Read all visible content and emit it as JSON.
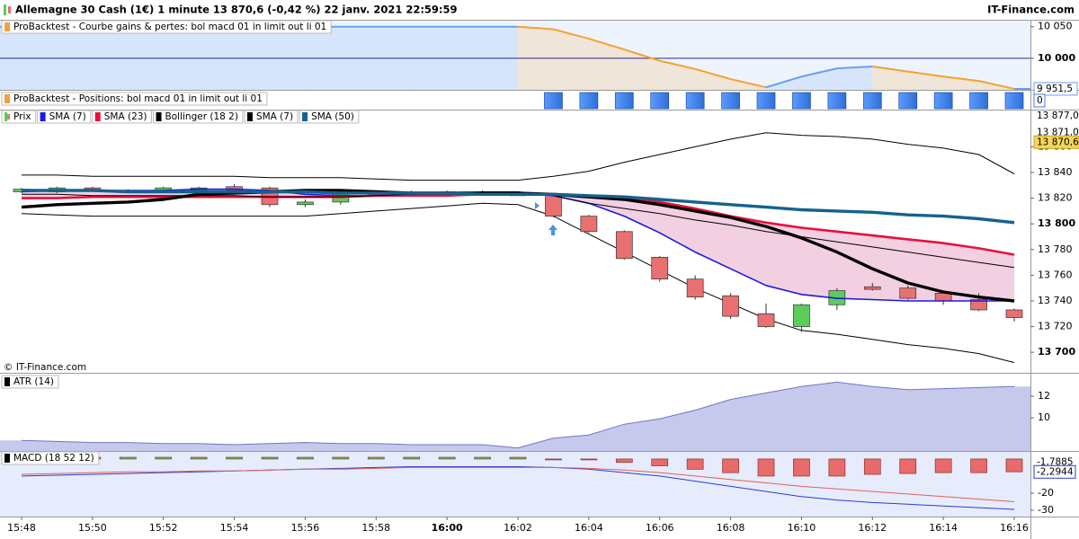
{
  "header": {
    "title": "Allemagne 30 Cash (1€) 1 minute 13 870,6 (-0,42 %) 22 janv. 2021 22:59:59",
    "brand": "IT-Finance.com",
    "copyright": "© IT-Finance.com"
  },
  "chart_data": [
    {
      "type": "line",
      "title": "ProBacktest - Courbe gains & pertes: bol macd 01 in limit out li 01",
      "values": [
        10050,
        10050,
        10050,
        10050,
        10050,
        10050,
        10050,
        10050,
        10050,
        10050,
        10050,
        10050,
        10050,
        10050,
        10050,
        10046,
        10031,
        10014,
        9996,
        9983,
        9967,
        9954,
        9971,
        9984,
        9987,
        9979,
        9971,
        9964,
        9951.5
      ],
      "last_label": "9 951,5",
      "up_color": "#6a9ef0",
      "down_color": "#f5a030",
      "reference_line": 10000,
      "reference_color": "#28288c",
      "ylim": [
        9950,
        10061
      ],
      "yticks": [
        {
          "value": 10050,
          "label": "10 050"
        },
        {
          "value": 10000,
          "label": "10 000"
        }
      ]
    },
    {
      "type": "bar",
      "title": "ProBacktest - Positions: bol macd 01 in limit out li 01",
      "values": [
        null,
        null,
        null,
        null,
        null,
        null,
        null,
        null,
        null,
        null,
        null,
        null,
        null,
        null,
        null,
        1,
        1,
        1,
        1,
        1,
        1,
        1,
        1,
        1,
        1,
        1,
        1,
        1,
        1
      ],
      "current_value": 0,
      "color": "#3f7fe6",
      "ylim": [
        0,
        1
      ]
    },
    {
      "type": "candlestick",
      "name": "Prix",
      "categories": [
        "15:48",
        null,
        "15:50",
        null,
        "15:52",
        null,
        "15:54",
        null,
        "15:56",
        null,
        "15:58",
        null,
        "16:00",
        null,
        "16:02",
        null,
        "16:04",
        null,
        "16:06",
        null,
        "16:08",
        null,
        "16:10",
        null,
        "16:12",
        null,
        "16:14",
        null,
        "16:16"
      ],
      "open": [
        13825,
        13825,
        13828,
        13826,
        13825,
        13826,
        13829,
        13828,
        13815,
        13817,
        13823,
        13824,
        13823,
        13824,
        13823,
        13823,
        13806,
        13794,
        13774,
        13757,
        13744,
        13730,
        13720,
        13737,
        13751,
        13750,
        13746,
        13741,
        13733
      ],
      "close": [
        13827,
        13828,
        13826,
        13825,
        13828,
        13828,
        13826,
        13815,
        13817,
        13825,
        13823,
        13824,
        13825,
        13824,
        13823,
        13806,
        13794,
        13773,
        13757,
        13743,
        13728,
        13720,
        13737,
        13748,
        13749,
        13742,
        13740,
        13733,
        13727
      ],
      "high": [
        13828,
        13829,
        13829,
        13827,
        13829,
        13829,
        13831,
        13829,
        13819,
        13826,
        13825,
        13826,
        13826,
        13826,
        13824,
        13824,
        13807,
        13795,
        13775,
        13760,
        13746,
        13738,
        13738,
        13750,
        13754,
        13752,
        13748,
        13746,
        13734
      ],
      "low": [
        13824,
        13824,
        13825,
        13824,
        13824,
        13825,
        13825,
        13813,
        13813,
        13815,
        13822,
        13823,
        13822,
        13823,
        13822,
        13805,
        13793,
        13772,
        13755,
        13741,
        13726,
        13719,
        13716,
        13733,
        13748,
        13741,
        13737,
        13732,
        13724
      ],
      "up_color": "#5ccc5c",
      "down_color": "#e87070",
      "series": [
        {
          "name": "SMA (7)",
          "color": "#1a1ae6",
          "line_width": 1.6,
          "values": [
            13825,
            13826,
            13826,
            13826,
            13826,
            13827,
            13827,
            13826,
            13823,
            13822,
            13822,
            13823,
            13823,
            13824,
            13824,
            13822,
            13816,
            13806,
            13793,
            13778,
            13765,
            13752,
            13745,
            13742,
            13741,
            13740,
            13740,
            13740,
            13740
          ]
        },
        {
          "name": "SMA (23)",
          "color": "#e8103c",
          "line_width": 2.6,
          "values": [
            13820,
            13820,
            13821,
            13821,
            13821,
            13821,
            13821,
            13821,
            13821,
            13821,
            13822,
            13822,
            13822,
            13823,
            13823,
            13823,
            13822,
            13820,
            13817,
            13812,
            13806,
            13801,
            13797,
            13794,
            13791,
            13788,
            13785,
            13781,
            13776
          ]
        },
        {
          "name": "Bollinger (18 2)",
          "color": "#000000",
          "line_width": 1,
          "values": [
            13823,
            13823,
            13822,
            13822,
            13822,
            13822,
            13822,
            13821,
            13821,
            13821,
            13822,
            13823,
            13824,
            13825,
            13825,
            13822,
            13816,
            13812,
            13808,
            13803,
            13799,
            13794,
            13790,
            13786,
            13782,
            13778,
            13774,
            13770,
            13766
          ],
          "upper": [
            13838,
            13838,
            13837,
            13837,
            13837,
            13837,
            13837,
            13836,
            13836,
            13836,
            13835,
            13834,
            13834,
            13834,
            13834,
            13837,
            13841,
            13848,
            13854,
            13860,
            13866,
            13871,
            13869,
            13868,
            13866,
            13862,
            13859,
            13854,
            13839
          ],
          "lower": [
            13808,
            13807,
            13806,
            13806,
            13806,
            13806,
            13806,
            13806,
            13806,
            13808,
            13810,
            13812,
            13814,
            13816,
            13815,
            13806,
            13792,
            13778,
            13764,
            13750,
            13738,
            13726,
            13717,
            13714,
            13710,
            13706,
            13703,
            13699,
            13692
          ]
        },
        {
          "name": "SMA (7)",
          "color": "#000000",
          "line_width": 3.4,
          "values": [
            13813,
            13815,
            13816,
            13817,
            13819,
            13823,
            13824,
            13825,
            13826,
            13826,
            13825,
            13824,
            13824,
            13824,
            13824,
            13823,
            13821,
            13819,
            13815,
            13810,
            13805,
            13798,
            13789,
            13778,
            13765,
            13754,
            13747,
            13743,
            13740
          ]
        },
        {
          "name": "SMA (50)",
          "color": "#13628f",
          "line_width": 3.4,
          "values": [
            13826,
            13826,
            13826,
            13825,
            13825,
            13825,
            13825,
            13825,
            13825,
            13824,
            13824,
            13824,
            13824,
            13823,
            13823,
            13823,
            13822,
            13821,
            13819,
            13817,
            13815,
            13813,
            13811,
            13810,
            13809,
            13807,
            13806,
            13804,
            13801
          ]
        }
      ],
      "price_markers": [
        {
          "value": 13877,
          "label": "13 877,0"
        },
        {
          "value": 13871,
          "label": "13 871,0"
        },
        {
          "value": 13870.6,
          "label": "13 870,6"
        }
      ],
      "ylim": [
        13684,
        13889
      ],
      "yticks": [
        {
          "value": 13700,
          "label": "13 700"
        },
        {
          "value": 13720,
          "label": "13 720"
        },
        {
          "value": 13740,
          "label": "13 740"
        },
        {
          "value": 13760,
          "label": "13 760"
        },
        {
          "value": 13780,
          "label": "13 780"
        },
        {
          "value": 13800,
          "label": "13 800"
        },
        {
          "value": 13820,
          "label": "13 820"
        },
        {
          "value": 13840,
          "label": "13 840"
        },
        {
          "value": 13860,
          "label": "13 860"
        }
      ]
    },
    {
      "type": "area",
      "title": "ATR (14)",
      "color": "#c6c9ec",
      "line_color": "#6f76c6",
      "values": [
        7.9,
        7.8,
        7.7,
        7.7,
        7.6,
        7.6,
        7.5,
        7.6,
        7.7,
        7.6,
        7.6,
        7.5,
        7.5,
        7.5,
        7.2,
        8.1,
        8.4,
        9.4,
        9.9,
        10.7,
        11.7,
        12.3,
        12.9,
        13.3,
        12.9,
        12.6,
        12.7,
        12.8,
        12.9
      ],
      "ylim": [
        6.92,
        14.17
      ],
      "yticks": [
        10,
        12
      ]
    },
    {
      "type": "bar",
      "title": "MACD (18 52 12)",
      "up_color": "#5ccc5c",
      "down_color": "#e86a6a",
      "values": [
        1,
        1,
        1,
        1,
        1,
        1,
        1,
        1,
        1,
        1,
        1,
        1,
        1,
        1,
        1,
        0,
        -0.5,
        -2,
        -4,
        -6,
        -8,
        -10,
        -10,
        -10,
        -9,
        -8.5,
        -8,
        -8,
        -7.5
      ],
      "series": [
        {
          "color": "#2b3bd6",
          "line_width": 1,
          "values": [
            -10,
            -9.5,
            -9,
            -8.5,
            -8,
            -7.5,
            -7,
            -6.5,
            -6,
            -5.5,
            -5,
            -4.5,
            -4.5,
            -4.5,
            -4.5,
            -5,
            -6,
            -8,
            -10,
            -13,
            -16,
            -19,
            -22,
            -24,
            -25.5,
            -26.5,
            -27.5,
            -28.5,
            -29.5
          ]
        },
        {
          "color": "#e06060",
          "line_width": 1,
          "values": [
            -9,
            -8.5,
            -8,
            -7.5,
            -7.5,
            -7,
            -7,
            -6.5,
            -6,
            -6,
            -5.5,
            -5,
            -5,
            -5,
            -5,
            -5,
            -5.5,
            -6.5,
            -8,
            -10,
            -12,
            -14,
            -16,
            -17.5,
            -19,
            -20.5,
            -22,
            -23.5,
            -25
          ]
        }
      ],
      "markers": [
        {
          "value": -1.7885,
          "label": "-1,7885"
        },
        {
          "value": -2.2944,
          "label": "-2,2944"
        }
      ],
      "ylim": [
        -33.7,
        4.7
      ],
      "yticks": [
        -20,
        -30
      ]
    }
  ]
}
